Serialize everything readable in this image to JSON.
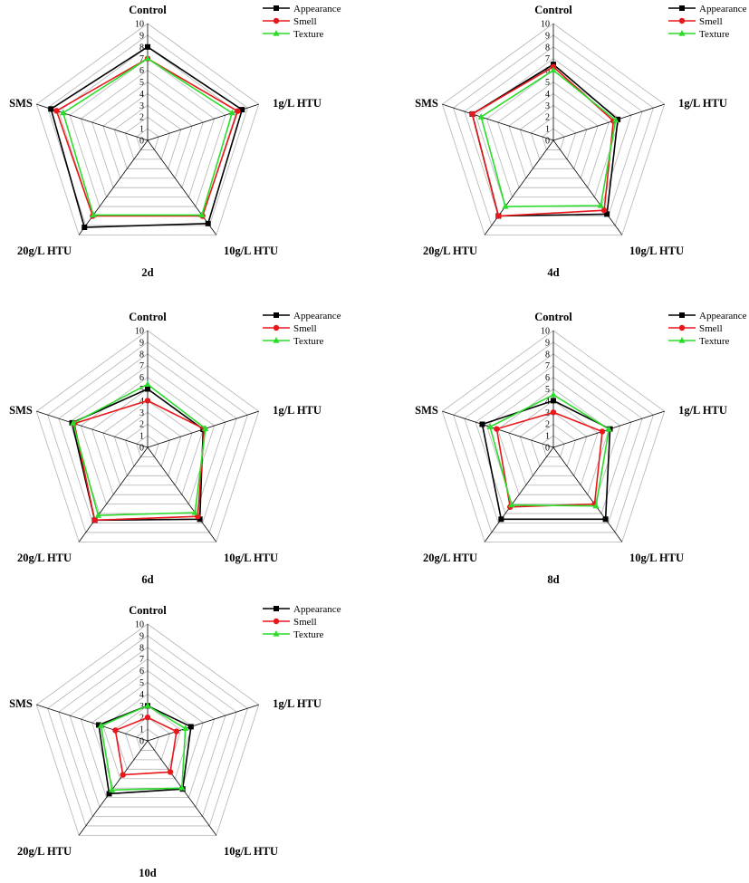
{
  "legend": [
    "Appearance",
    "Smell",
    "Texture"
  ],
  "colors": {
    "Appearance": "#000000",
    "Smell": "#e8171b",
    "Texture": "#2bdc2b",
    "grid": "#b4b4b4",
    "spoke": "#000000"
  },
  "chart_data": [
    {
      "type": "radar",
      "title": "2d",
      "categories": [
        "Control",
        "1g/L HTU",
        "10g/L HTU",
        "20g/L HTU",
        "SMS"
      ],
      "rmax": 10,
      "ticks": [
        0,
        1,
        2,
        3,
        4,
        5,
        6,
        7,
        8,
        9,
        10
      ],
      "series": [
        {
          "name": "Appearance",
          "values": [
            8.0,
            8.5,
            8.8,
            9.2,
            8.7
          ]
        },
        {
          "name": "Smell",
          "values": [
            7.0,
            8.1,
            8.0,
            8.0,
            8.2
          ]
        },
        {
          "name": "Texture",
          "values": [
            7.0,
            7.6,
            7.9,
            7.9,
            7.6
          ]
        }
      ]
    },
    {
      "type": "radar",
      "title": "4d",
      "categories": [
        "Control",
        "1g/L HTU",
        "10g/L HTU",
        "20g/L HTU",
        "SMS"
      ],
      "rmax": 10,
      "ticks": [
        0,
        1,
        2,
        3,
        4,
        5,
        6,
        7,
        8,
        9,
        10
      ],
      "series": [
        {
          "name": "Appearance",
          "values": [
            6.5,
            5.8,
            7.8,
            8.0,
            7.3
          ]
        },
        {
          "name": "Smell",
          "values": [
            6.3,
            5.4,
            7.4,
            8.0,
            7.3
          ]
        },
        {
          "name": "Texture",
          "values": [
            6.0,
            5.6,
            6.9,
            7.0,
            6.5
          ]
        }
      ]
    },
    {
      "type": "radar",
      "title": "6d",
      "categories": [
        "Control",
        "1g/L HTU",
        "10g/L HTU",
        "20g/L HTU",
        "SMS"
      ],
      "rmax": 10,
      "ticks": [
        0,
        1,
        2,
        3,
        4,
        5,
        6,
        7,
        8,
        9,
        10
      ],
      "series": [
        {
          "name": "Appearance",
          "values": [
            5.0,
            5.0,
            7.6,
            7.7,
            6.8
          ]
        },
        {
          "name": "Smell",
          "values": [
            4.0,
            5.1,
            7.3,
            7.7,
            6.6
          ]
        },
        {
          "name": "Texture",
          "values": [
            5.4,
            5.2,
            6.9,
            7.2,
            6.7
          ]
        }
      ]
    },
    {
      "type": "radar",
      "title": "8d",
      "categories": [
        "Control",
        "1g/L HTU",
        "10g/L HTU",
        "20g/L HTU",
        "SMS"
      ],
      "rmax": 10,
      "ticks": [
        0,
        1,
        2,
        3,
        4,
        5,
        6,
        7,
        8,
        9,
        10
      ],
      "series": [
        {
          "name": "Appearance",
          "values": [
            4.0,
            5.1,
            7.6,
            7.6,
            6.4
          ]
        },
        {
          "name": "Smell",
          "values": [
            3.0,
            4.4,
            6.0,
            6.3,
            5.1
          ]
        },
        {
          "name": "Texture",
          "values": [
            4.5,
            5.0,
            6.2,
            6.1,
            5.7
          ]
        }
      ]
    },
    {
      "type": "radar",
      "title": "10d",
      "categories": [
        "Control",
        "1g/L HTU",
        "10g/L HTU",
        "20g/L HTU",
        "SMS"
      ],
      "rmax": 10,
      "ticks": [
        0,
        1,
        2,
        3,
        4,
        5,
        6,
        7,
        8,
        9,
        10
      ],
      "series": [
        {
          "name": "Appearance",
          "values": [
            3.0,
            3.9,
            5.1,
            5.6,
            4.4
          ]
        },
        {
          "name": "Smell",
          "values": [
            2.0,
            2.6,
            3.3,
            3.6,
            2.9
          ]
        },
        {
          "name": "Texture",
          "values": [
            3.0,
            3.4,
            5.0,
            5.2,
            4.2
          ]
        }
      ]
    }
  ]
}
